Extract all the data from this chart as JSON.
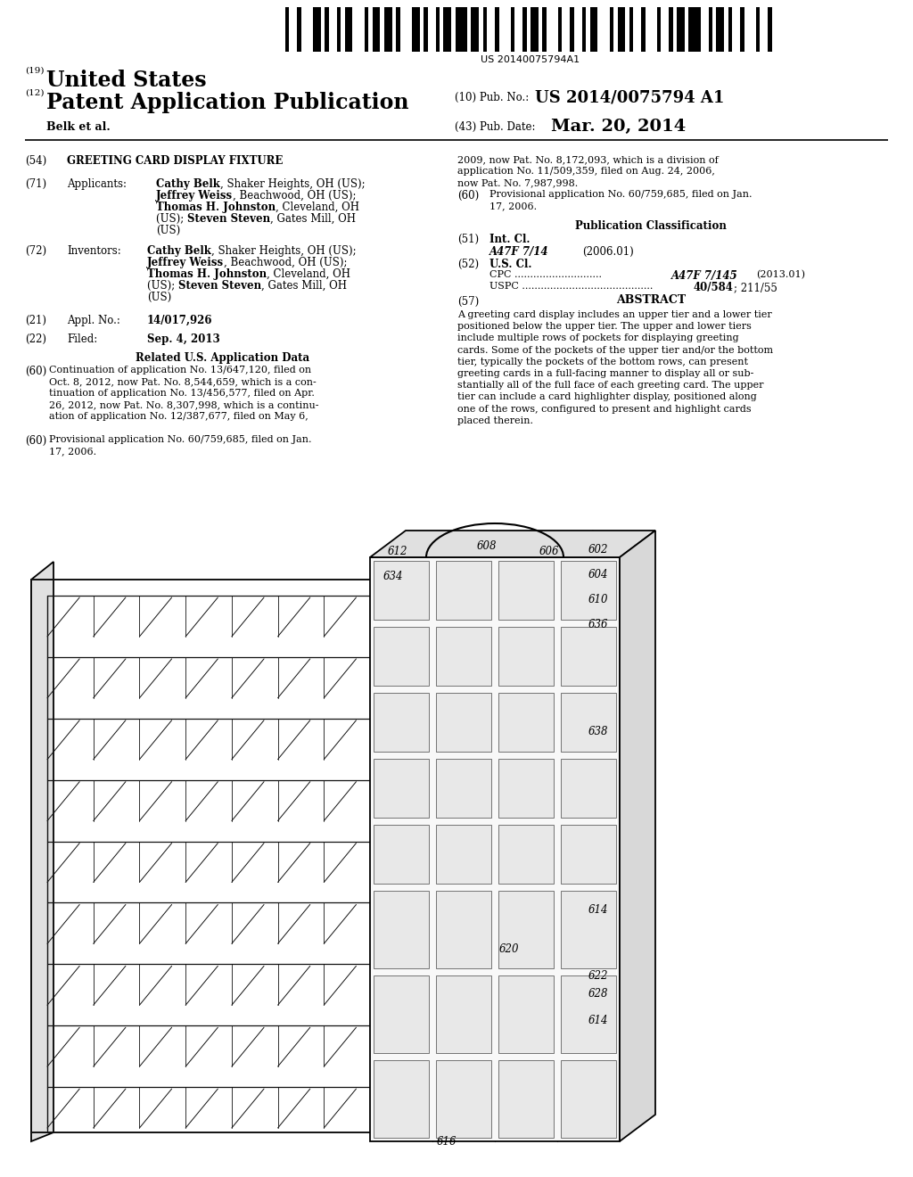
{
  "bg": "#ffffff",
  "barcode_text": "US 20140075794A1",
  "num19": "(19)",
  "txt19": "United States",
  "num12": "(12)",
  "txt12": "Patent Application Publication",
  "pub_no_lbl": "(10) Pub. No.:",
  "pub_no_val": "US 2014/0075794 A1",
  "pub_date_lbl": "(43) Pub. Date:",
  "pub_date_val": "Mar. 20, 2014",
  "author": "Belk et al.",
  "s54_num": "(54)",
  "s54_txt": "GREETING CARD DISPLAY FIXTURE",
  "s71_num": "(71)",
  "s71_lbl": "Applicants:",
  "s71_bold1": "Cathy Belk",
  "s71_r1": ", Shaker Heights, OH (US);",
  "s71_bold2": "Jeffrey Weiss",
  "s71_r2": ", Beachwood, OH (US);",
  "s71_bold3": "Thomas H. Johnston",
  "s71_r3": ", Cleveland, OH",
  "s71_r3b": "(US); ",
  "s71_bold4": "Steven Steven",
  "s71_r4": ", Gates Mill, OH",
  "s71_r4b": "(US)",
  "s72_num": "(72)",
  "s72_lbl": "Inventors:",
  "s21_num": "(21)",
  "s21_lbl": "Appl. No.:",
  "s21_val": "14/017,926",
  "s22_num": "(22)",
  "s22_lbl": "Filed:",
  "s22_val": "Sep. 4, 2013",
  "rel_title": "Related U.S. Application Data",
  "s60_num": "(60)",
  "s60_txt": "Continuation of application No. 13/647,120, filed on\nOct. 8, 2012, now Pat. No. 8,544,659, which is a con-\ntinuation of application No. 13/456,577, filed on Apr.\n26, 2012, now Pat. No. 8,307,998, which is a continu-\nation of application No. 12/387,677, filed on May 6,",
  "r_cont1": "2009, now Pat. No. 8,172,093, which is a division of",
  "r_cont2": "application No. 11/509,359, filed on Aug. 24, 2006,",
  "r_cont3": "now Pat. No. 7,987,998.",
  "s60b_num": "(60)",
  "s60b_txt": "Provisional application No. 60/759,685, filed on Jan.\n17, 2006.",
  "pub_class": "Publication Classification",
  "s51_num": "(51)",
  "s51_lbl": "Int. Cl.",
  "s51_cls": "A47F 7/14",
  "s51_yr": "(2006.01)",
  "s52_num": "(52)",
  "s52_lbl": "U.S. Cl.",
  "cpc_lbl": "CPC",
  "cpc_dots": " ............................",
  "cpc_val": "A47F 7/145",
  "cpc_yr": "(2013.01)",
  "uspc_lbl": "USPC",
  "uspc_dots": " ..........................................",
  "uspc_val": "40/584",
  "uspc_val2": "; 211/55",
  "s57_num": "(57)",
  "s57_title": "ABSTRACT",
  "abstract": "A greeting card display includes an upper tier and a lower tier\npositioned below the upper tier. The upper and lower tiers\ninclude multiple rows of pockets for displaying greeting\ncards. Some of the pockets of the upper tier and/or the bottom\ntier, typically the pockets of the bottom rows, can present\ngreeting cards in a full-facing manner to display all or sub-\nstantially all of the full face of each greeting card. The upper\ntier can include a card highlighter display, positioned along\none of the rows, configured to present and highlight cards\nplaced therein.",
  "lbl_602": "602",
  "lbl_604": "604",
  "lbl_606": "606",
  "lbl_608": "608",
  "lbl_610": "610",
  "lbl_612": "612",
  "lbl_614": "614",
  "lbl_616": "616",
  "lbl_620": "620",
  "lbl_622": "622",
  "lbl_628": "628",
  "lbl_634": "634",
  "lbl_636": "636",
  "lbl_638": "638"
}
